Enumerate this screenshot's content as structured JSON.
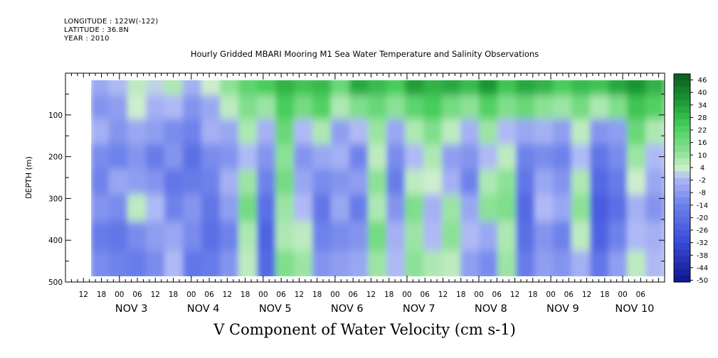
{
  "header": {
    "longitude": "LONGITUDE : 122W(-122)",
    "latitude": "LATITUDE : 36.8N",
    "year": "YEAR : 2010"
  },
  "chart_data": {
    "type": "heatmap",
    "title": "Hourly Gridded MBARI Mooring M1 Sea Water Temperature and Salinity Observations",
    "xlabel": "V Component of Water Velocity (cm s-1)",
    "ylabel": "DEPTH (m)",
    "ylim": [
      500,
      0
    ],
    "y_ticks": [
      100,
      200,
      300,
      400,
      500
    ],
    "x_hour_ticks": [
      "12",
      "18",
      "00",
      "06",
      "12",
      "18",
      "00",
      "06",
      "12",
      "18",
      "00",
      "06",
      "12",
      "18",
      "00",
      "06",
      "12",
      "18",
      "00",
      "06",
      "12",
      "18",
      "00",
      "06",
      "12",
      "18",
      "00",
      "06",
      "12",
      "18",
      "00",
      "06"
    ],
    "x_day_labels": [
      "NOV  3",
      "NOV  4",
      "NOV  5",
      "NOV  6",
      "NOV  7",
      "NOV  8",
      "NOV  9",
      "NOV 10"
    ],
    "colorbar": {
      "labels": [
        "46",
        "40",
        "34",
        "28",
        "22",
        "16",
        "10",
        "4",
        "-2",
        "-8",
        "-14",
        "-20",
        "-26",
        "-32",
        "-38",
        "-44",
        "-50"
      ],
      "range": [
        -50,
        46
      ],
      "colors": {
        "high": "#0a5a1e",
        "mid_high": "#3ed05a",
        "zero": "#d8f0d8",
        "mid_low": "#7f8ff0",
        "low": "#10148c"
      }
    },
    "columns": [
      {
        "t": "NOV 2 18h",
        "v": [
          -6,
          -10,
          -4,
          -12,
          -14,
          -10,
          -16,
          -12
        ]
      },
      {
        "t": "NOV 3 00h",
        "v": [
          -2,
          -8,
          -10,
          -14,
          -6,
          -12,
          -18,
          -14
        ]
      },
      {
        "t": "NOV 3 06h",
        "v": [
          4,
          2,
          -6,
          -10,
          -8,
          4,
          -12,
          -16
        ]
      },
      {
        "t": "NOV 3 12h",
        "v": [
          0,
          -4,
          -8,
          -16,
          -10,
          -2,
          -8,
          -12
        ]
      },
      {
        "t": "NOV 3 18h",
        "v": [
          6,
          -2,
          -12,
          -10,
          -18,
          -14,
          -6,
          -2
        ]
      },
      {
        "t": "NOV 4 00h",
        "v": [
          -4,
          -10,
          -14,
          -20,
          -16,
          -10,
          -12,
          -18
        ]
      },
      {
        "t": "NOV 4 06h",
        "v": [
          2,
          -6,
          -4,
          -12,
          -14,
          -18,
          -20,
          -16
        ]
      },
      {
        "t": "NOV 4 12h",
        "v": [
          10,
          4,
          -6,
          -10,
          -4,
          -8,
          -14,
          -10
        ]
      },
      {
        "t": "NOV 4 18h",
        "v": [
          18,
          12,
          6,
          -2,
          8,
          14,
          6,
          4
        ]
      },
      {
        "t": "NOV 5 00h",
        "v": [
          22,
          8,
          -4,
          -10,
          -14,
          -20,
          -24,
          -22
        ]
      },
      {
        "t": "NOV 5 06h",
        "v": [
          28,
          22,
          16,
          10,
          14,
          8,
          6,
          12
        ]
      },
      {
        "t": "NOV 5 12h",
        "v": [
          24,
          14,
          -2,
          -10,
          -6,
          -2,
          4,
          8
        ]
      },
      {
        "t": "NOV 5 18h",
        "v": [
          26,
          20,
          6,
          -6,
          -12,
          -18,
          -14,
          -10
        ]
      },
      {
        "t": "NOV 6 00h",
        "v": [
          16,
          6,
          -8,
          -4,
          -10,
          -6,
          -12,
          -8
        ]
      },
      {
        "t": "NOV 6 06h",
        "v": [
          30,
          12,
          -2,
          -14,
          -8,
          -16,
          -10,
          -6
        ]
      },
      {
        "t": "NOV 6 12h",
        "v": [
          26,
          16,
          8,
          4,
          10,
          6,
          14,
          8
        ]
      },
      {
        "t": "NOV 6 18h",
        "v": [
          22,
          10,
          -6,
          -12,
          -16,
          -10,
          -4,
          -2
        ]
      },
      {
        "t": "NOV 7 00h",
        "v": [
          32,
          18,
          6,
          -2,
          4,
          12,
          8,
          10
        ]
      },
      {
        "t": "NOV 7 06h",
        "v": [
          28,
          22,
          12,
          6,
          2,
          -4,
          -2,
          6
        ]
      },
      {
        "t": "NOV 7 12h",
        "v": [
          30,
          14,
          4,
          -8,
          -4,
          8,
          10,
          4
        ]
      },
      {
        "t": "NOV 7 18h",
        "v": [
          26,
          10,
          -4,
          -10,
          -14,
          -6,
          -2,
          -8
        ]
      },
      {
        "t": "NOV 8 00h",
        "v": [
          34,
          20,
          8,
          -2,
          6,
          10,
          -6,
          -12
        ]
      },
      {
        "t": "NOV 8 06h",
        "v": [
          24,
          12,
          -2,
          4,
          10,
          12,
          6,
          8
        ]
      },
      {
        "t": "NOV 8 12h",
        "v": [
          30,
          16,
          -6,
          -14,
          -18,
          -22,
          -20,
          -16
        ]
      },
      {
        "t": "NOV 8 18h",
        "v": [
          28,
          10,
          -4,
          -12,
          -6,
          -2,
          -10,
          -8
        ]
      },
      {
        "t": "NOV 9 00h",
        "v": [
          22,
          8,
          -8,
          -14,
          -10,
          -6,
          -14,
          -10
        ]
      },
      {
        "t": "NOV 9 06h",
        "v": [
          26,
          14,
          4,
          -2,
          6,
          10,
          4,
          -4
        ]
      },
      {
        "t": "NOV 9 12h",
        "v": [
          24,
          6,
          -10,
          -18,
          -22,
          -26,
          -24,
          -18
        ]
      },
      {
        "t": "NOV 9 18h",
        "v": [
          30,
          12,
          -8,
          -12,
          -16,
          -20,
          -14,
          -8
        ]
      },
      {
        "t": "NOV 10 00h",
        "v": [
          34,
          24,
          16,
          8,
          2,
          -4,
          -2,
          4
        ]
      },
      {
        "t": "NOV 10 06h",
        "v": [
          28,
          20,
          6,
          -2,
          -6,
          -10,
          -4,
          -2
        ]
      }
    ],
    "depth_levels": [
      25,
      80,
      140,
      200,
      260,
      320,
      390,
      460
    ]
  }
}
